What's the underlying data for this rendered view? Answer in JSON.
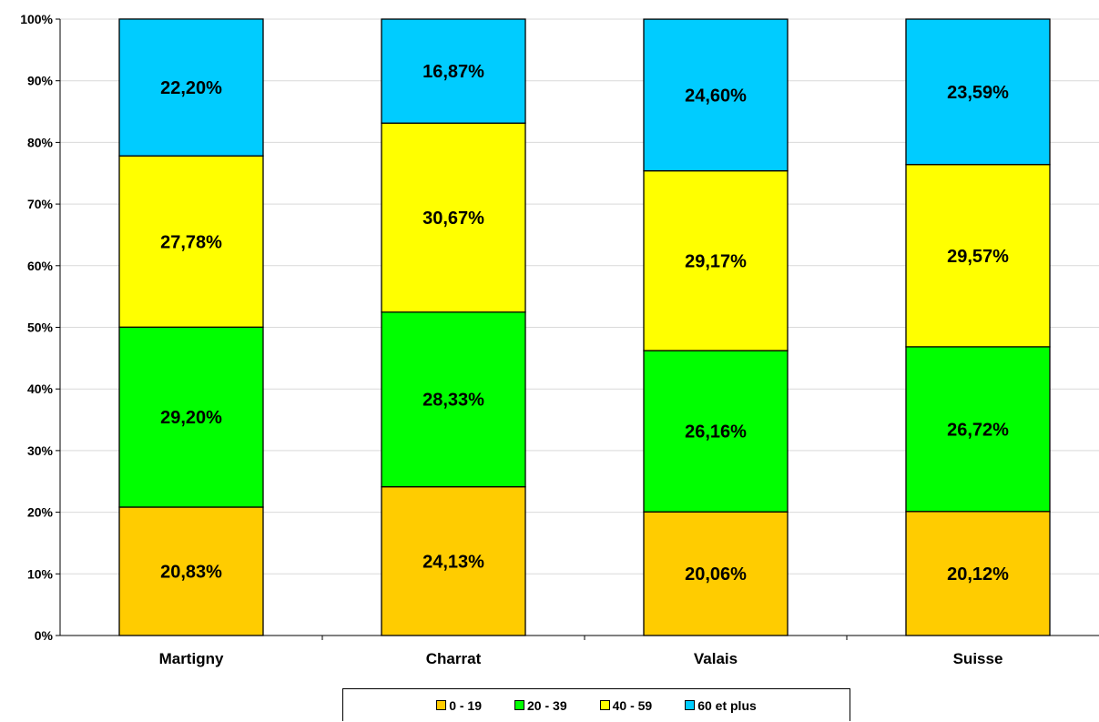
{
  "chart_data": {
    "type": "bar",
    "stacked": true,
    "percent_stacked": true,
    "categories": [
      "Martigny",
      "Charrat",
      "Valais",
      "Suisse"
    ],
    "series": [
      {
        "name": "0 - 19",
        "color": "#FFCC00",
        "values": [
          20.83,
          24.13,
          20.06,
          20.12
        ],
        "labels": [
          "20,83%",
          "24,13%",
          "20,06%",
          "20,12%"
        ]
      },
      {
        "name": "20 - 39",
        "color": "#00FF00",
        "values": [
          29.2,
          28.33,
          26.16,
          26.72
        ],
        "labels": [
          "29,20%",
          "28,33%",
          "26,16%",
          "26,72%"
        ]
      },
      {
        "name": "40 - 59",
        "color": "#FFFF00",
        "values": [
          27.78,
          30.67,
          29.17,
          29.57
        ],
        "labels": [
          "27,78%",
          "30,67%",
          "29,17%",
          "29,57%"
        ]
      },
      {
        "name": "60 et plus",
        "color": "#00CCFF",
        "values": [
          22.2,
          16.87,
          24.6,
          23.59
        ],
        "labels": [
          "22,20%",
          "16,87%",
          "24,60%",
          "23,59%"
        ]
      }
    ],
    "ylim": [
      0,
      100
    ],
    "yticks": [
      "0%",
      "10%",
      "20%",
      "30%",
      "40%",
      "50%",
      "60%",
      "70%",
      "80%",
      "90%",
      "100%"
    ],
    "grid": true,
    "legend_position": "bottom"
  }
}
